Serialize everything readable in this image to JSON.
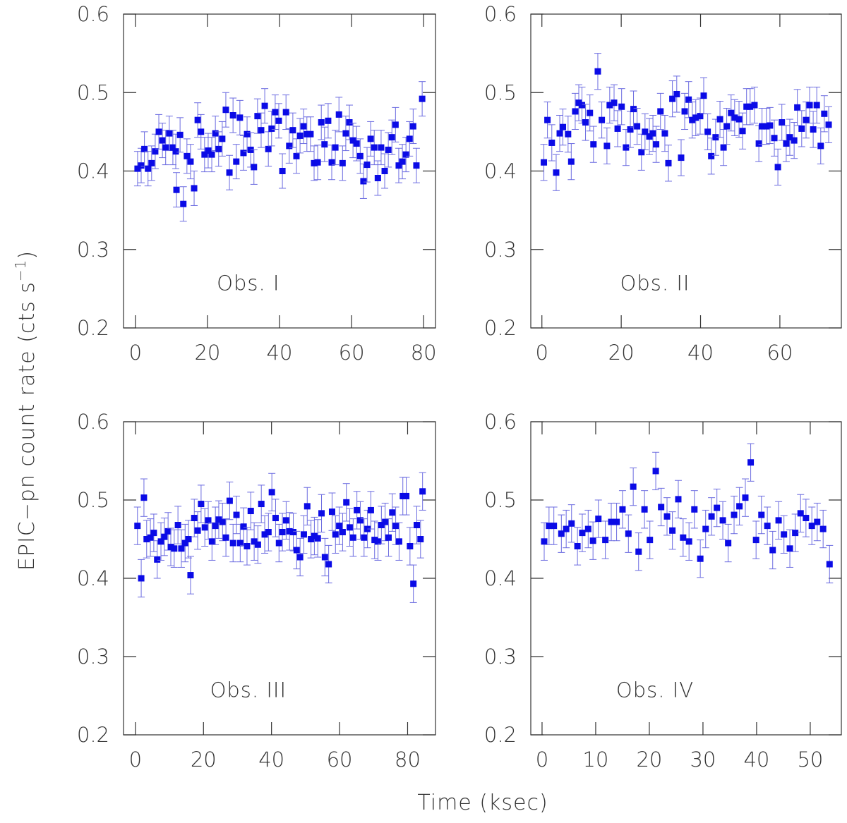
{
  "xlabel": "Time (ksec)",
  "ylabel": {
    "text": "EPIC−pn count rate (cts s",
    "superscript": "−1",
    "close": ")"
  },
  "chart_data": [
    {
      "type": "scatter",
      "annotation": "Obs. I",
      "error_color": "#6b6be0",
      "xlim": [
        -3.3,
        83.3
      ],
      "ylim": [
        0.2,
        0.6
      ],
      "xticks": [
        0,
        20,
        40,
        60,
        80
      ],
      "yticks": [
        0.2,
        0.3,
        0.4,
        0.5,
        0.6
      ],
      "x": [
        0.6,
        1.6,
        2.5,
        3.5,
        4.5,
        5.5,
        6.5,
        7.5,
        8.4,
        9.4,
        10.4,
        11.2,
        11.4,
        12.4,
        13.3,
        14.3,
        15.3,
        16.3,
        17.3,
        18.2,
        19.2,
        20.2,
        21.2,
        22.2,
        23.1,
        24.1,
        25.1,
        26.1,
        27.1,
        28.0,
        29.0,
        30.0,
        31.0,
        32.0,
        32.9,
        33.9,
        34.9,
        35.9,
        36.9,
        37.8,
        38.8,
        39.8,
        40.8,
        41.8,
        42.7,
        43.7,
        44.7,
        45.7,
        46.7,
        47.6,
        48.6,
        49.6,
        50.6,
        51.6,
        52.5,
        53.5,
        54.5,
        55.5,
        56.5,
        57.5,
        58.4,
        59.4,
        60.4,
        61.4,
        62.4,
        63.3,
        64.3,
        65.3,
        66.3,
        67.3,
        68.2,
        69.2,
        70.2,
        71.2,
        72.2,
        73.1,
        74.1,
        75.1,
        76.1,
        77.1,
        78.0,
        79.6
      ],
      "series": [
        {
          "color": "#0b0be6",
          "error": 0.022,
          "values": [
            0.403,
            0.407,
            0.428,
            0.403,
            0.41,
            0.425,
            0.45,
            0.439,
            0.43,
            0.448,
            0.43,
            0.425,
            0.376,
            0.446,
            0.358,
            0.419,
            0.412,
            0.378,
            0.465,
            0.45,
            0.421,
            0.426,
            0.421,
            0.448,
            0.428,
            0.441,
            0.478,
            0.398,
            0.471,
            0.412,
            0.468,
            0.423,
            0.447,
            0.427,
            0.405,
            0.47,
            0.452,
            0.483,
            0.428,
            0.454,
            0.475,
            0.464,
            0.4,
            0.475,
            0.432,
            0.452,
            0.419,
            0.445,
            0.457,
            0.447,
            0.447,
            0.41,
            0.411,
            0.462,
            0.434,
            0.464,
            0.411,
            0.43,
            0.472,
            0.41,
            0.448,
            0.462,
            0.439,
            0.435,
            0.419,
            0.387,
            0.408,
            0.441,
            0.43,
            0.391,
            0.43,
            0.4,
            0.427,
            0.443,
            0.459,
            0.407,
            0.412,
            0.421,
            0.441,
            0.457,
            0.407,
            0.492
          ]
        }
      ]
    },
    {
      "type": "scatter",
      "annotation": "Obs. II",
      "error_color": "#6b6be0",
      "xlim": [
        -2.8,
        75.5
      ],
      "ylim": [
        0.2,
        0.6
      ],
      "xticks": [
        0,
        20,
        40,
        60
      ],
      "yticks": [
        0.2,
        0.3,
        0.4,
        0.5,
        0.6
      ],
      "x": [
        0.5,
        1.4,
        2.5,
        3.6,
        4.5,
        5.3,
        6.6,
        7.4,
        8.4,
        9.3,
        10.1,
        11.0,
        12.1,
        13.0,
        14.1,
        15.1,
        16.4,
        17.1,
        18.2,
        19.1,
        20.1,
        21.2,
        22.3,
        23.1,
        24.0,
        25.1,
        26.0,
        27.1,
        28.0,
        28.8,
        29.9,
        31.0,
        31.9,
        32.9,
        34.0,
        35.1,
        36.0,
        37.0,
        37.9,
        38.8,
        39.9,
        40.8,
        41.8,
        42.7,
        43.8,
        44.9,
        45.8,
        46.6,
        47.7,
        48.6,
        49.7,
        50.6,
        51.6,
        52.5,
        53.6,
        54.7,
        55.5,
        56.6,
        57.5,
        58.6,
        59.5,
        60.5,
        61.6,
        62.5,
        63.6,
        64.4,
        65.5,
        66.6,
        67.5,
        68.4,
        69.3,
        70.3,
        71.2,
        72.3
      ],
      "series": [
        {
          "color": "#0b0be6",
          "error": 0.023,
          "values": [
            0.411,
            0.465,
            0.436,
            0.398,
            0.448,
            0.456,
            0.447,
            0.412,
            0.476,
            0.487,
            0.484,
            0.462,
            0.474,
            0.434,
            0.527,
            0.465,
            0.432,
            0.484,
            0.487,
            0.454,
            0.482,
            0.43,
            0.453,
            0.479,
            0.457,
            0.424,
            0.45,
            0.444,
            0.448,
            0.434,
            0.476,
            0.448,
            0.41,
            0.492,
            0.498,
            0.417,
            0.476,
            0.491,
            0.465,
            0.468,
            0.47,
            0.496,
            0.45,
            0.419,
            0.443,
            0.466,
            0.43,
            0.457,
            0.474,
            0.468,
            0.466,
            0.451,
            0.482,
            0.482,
            0.484,
            0.435,
            0.457,
            0.457,
            0.458,
            0.442,
            0.405,
            0.462,
            0.435,
            0.443,
            0.439,
            0.481,
            0.454,
            0.465,
            0.484,
            0.453,
            0.484,
            0.432,
            0.473,
            0.459
          ]
        }
      ]
    },
    {
      "type": "scatter",
      "annotation": "Obs. III",
      "error_color": "#6b6be0",
      "xlim": [
        -3.5,
        88.2
      ],
      "ylim": [
        0.2,
        0.6
      ],
      "xticks": [
        0,
        20,
        40,
        60,
        80
      ],
      "yticks": [
        0.2,
        0.3,
        0.4,
        0.5,
        0.6
      ],
      "x": [
        0.6,
        1.7,
        2.5,
        3.3,
        4.4,
        5.4,
        6.4,
        7.5,
        8.5,
        9.6,
        10.4,
        11.4,
        12.5,
        13.5,
        14.6,
        15.6,
        16.2,
        17.3,
        18.3,
        19.3,
        20.4,
        21.4,
        22.5,
        23.5,
        24.5,
        25.6,
        26.6,
        27.7,
        28.7,
        29.7,
        30.8,
        31.8,
        32.8,
        33.9,
        34.9,
        36.0,
        37.0,
        38.0,
        39.1,
        40.1,
        41.2,
        42.2,
        43.2,
        44.3,
        45.3,
        46.4,
        47.4,
        48.4,
        49.5,
        50.5,
        51.6,
        52.6,
        53.6,
        54.7,
        55.7,
        56.8,
        57.8,
        58.8,
        59.9,
        60.9,
        62.0,
        63.0,
        64.0,
        65.1,
        66.1,
        67.2,
        68.2,
        69.2,
        70.3,
        71.3,
        72.3,
        73.4,
        74.4,
        75.5,
        76.5,
        77.5,
        78.6,
        79.6,
        80.7,
        81.7,
        82.7,
        83.8,
        84.4
      ],
      "series": [
        {
          "color": "#0b0be6",
          "error": 0.024,
          "values": [
            0.467,
            0.4,
            0.503,
            0.45,
            0.452,
            0.458,
            0.424,
            0.447,
            0.453,
            0.46,
            0.44,
            0.438,
            0.468,
            0.438,
            0.445,
            0.45,
            0.404,
            0.477,
            0.461,
            0.495,
            0.465,
            0.474,
            0.447,
            0.467,
            0.475,
            0.472,
            0.452,
            0.499,
            0.445,
            0.481,
            0.445,
            0.466,
            0.441,
            0.486,
            0.447,
            0.443,
            0.495,
            0.456,
            0.459,
            0.51,
            0.477,
            0.445,
            0.459,
            0.474,
            0.46,
            0.459,
            0.436,
            0.427,
            0.456,
            0.492,
            0.45,
            0.454,
            0.451,
            0.483,
            0.427,
            0.418,
            0.485,
            0.456,
            0.467,
            0.459,
            0.497,
            0.465,
            0.452,
            0.487,
            0.474,
            0.452,
            0.463,
            0.487,
            0.449,
            0.447,
            0.468,
            0.472,
            0.452,
            0.484,
            0.467,
            0.447,
            0.505,
            0.505,
            0.441,
            0.393,
            0.468,
            0.45,
            0.511
          ]
        }
      ]
    },
    {
      "type": "scatter",
      "annotation": "Obs. IV",
      "error_color": "#6b6be0",
      "xlim": [
        -2.1,
        55.8
      ],
      "ylim": [
        0.2,
        0.6
      ],
      "xticks": [
        0,
        10,
        20,
        30,
        40,
        50
      ],
      "yticks": [
        0.2,
        0.3,
        0.4,
        0.5,
        0.6
      ],
      "x": [
        0.4,
        1.3,
        2.2,
        3.6,
        4.5,
        5.5,
        6.6,
        7.5,
        8.6,
        9.5,
        10.5,
        11.8,
        12.9,
        13.9,
        15.0,
        16.1,
        17.0,
        18.0,
        19.1,
        20.1,
        21.2,
        22.2,
        23.3,
        24.3,
        25.4,
        26.3,
        27.4,
        28.4,
        29.5,
        30.5,
        31.6,
        32.6,
        33.7,
        34.7,
        35.8,
        36.8,
        37.9,
        38.9,
        39.9,
        40.9,
        42.0,
        43.0,
        44.1,
        45.1,
        46.2,
        47.2,
        48.2,
        49.2,
        50.3,
        51.3,
        52.4,
        53.6
      ],
      "series": [
        {
          "color": "#0b0be6",
          "error": 0.024,
          "values": [
            0.447,
            0.467,
            0.467,
            0.457,
            0.463,
            0.47,
            0.441,
            0.458,
            0.463,
            0.448,
            0.476,
            0.449,
            0.472,
            0.472,
            0.488,
            0.457,
            0.517,
            0.434,
            0.488,
            0.449,
            0.537,
            0.491,
            0.479,
            0.461,
            0.501,
            0.452,
            0.447,
            0.488,
            0.425,
            0.463,
            0.479,
            0.49,
            0.474,
            0.445,
            0.481,
            0.492,
            0.503,
            0.548,
            0.449,
            0.481,
            0.467,
            0.436,
            0.474,
            0.456,
            0.438,
            0.458,
            0.483,
            0.477,
            0.467,
            0.472,
            0.463,
            0.418
          ]
        }
      ]
    }
  ]
}
